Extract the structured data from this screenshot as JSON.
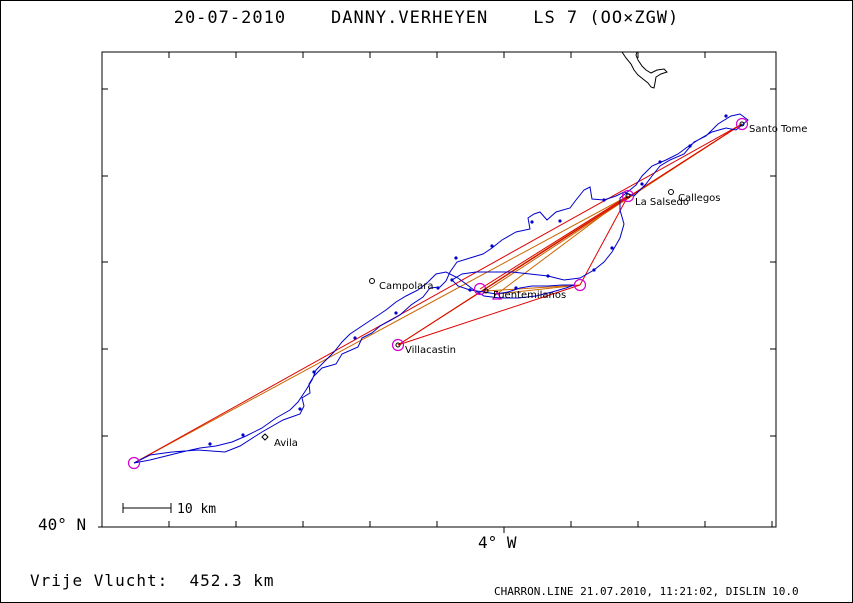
{
  "header": {
    "title": "20-07-2010    DANNY.VERHEYEN    LS 7 (OO×ZGW)"
  },
  "axes": {
    "lat_label": "40° N",
    "lon_label": "4° W"
  },
  "scale_bar": {
    "label": "10 km"
  },
  "places": [
    {
      "name": "Santo Tome"
    },
    {
      "name": "Callegos"
    },
    {
      "name": "La Salsedo"
    },
    {
      "name": "Campolara"
    },
    {
      "name": "Fuentemilanos"
    },
    {
      "name": "Villacastin"
    },
    {
      "name": "Avila"
    }
  ],
  "summary": {
    "distance_text": "Vrije Vlucht:  452.3 km"
  },
  "footer": {
    "text": "CHARRON.LINE 21.07.2010, 11:21:02, DISLIN 10.0"
  },
  "colors": {
    "track": "#0000cc",
    "task_line": "#cc6600",
    "leg_line": "#e00000",
    "turnpoint": "#d000d0",
    "frame": "#000000"
  }
}
